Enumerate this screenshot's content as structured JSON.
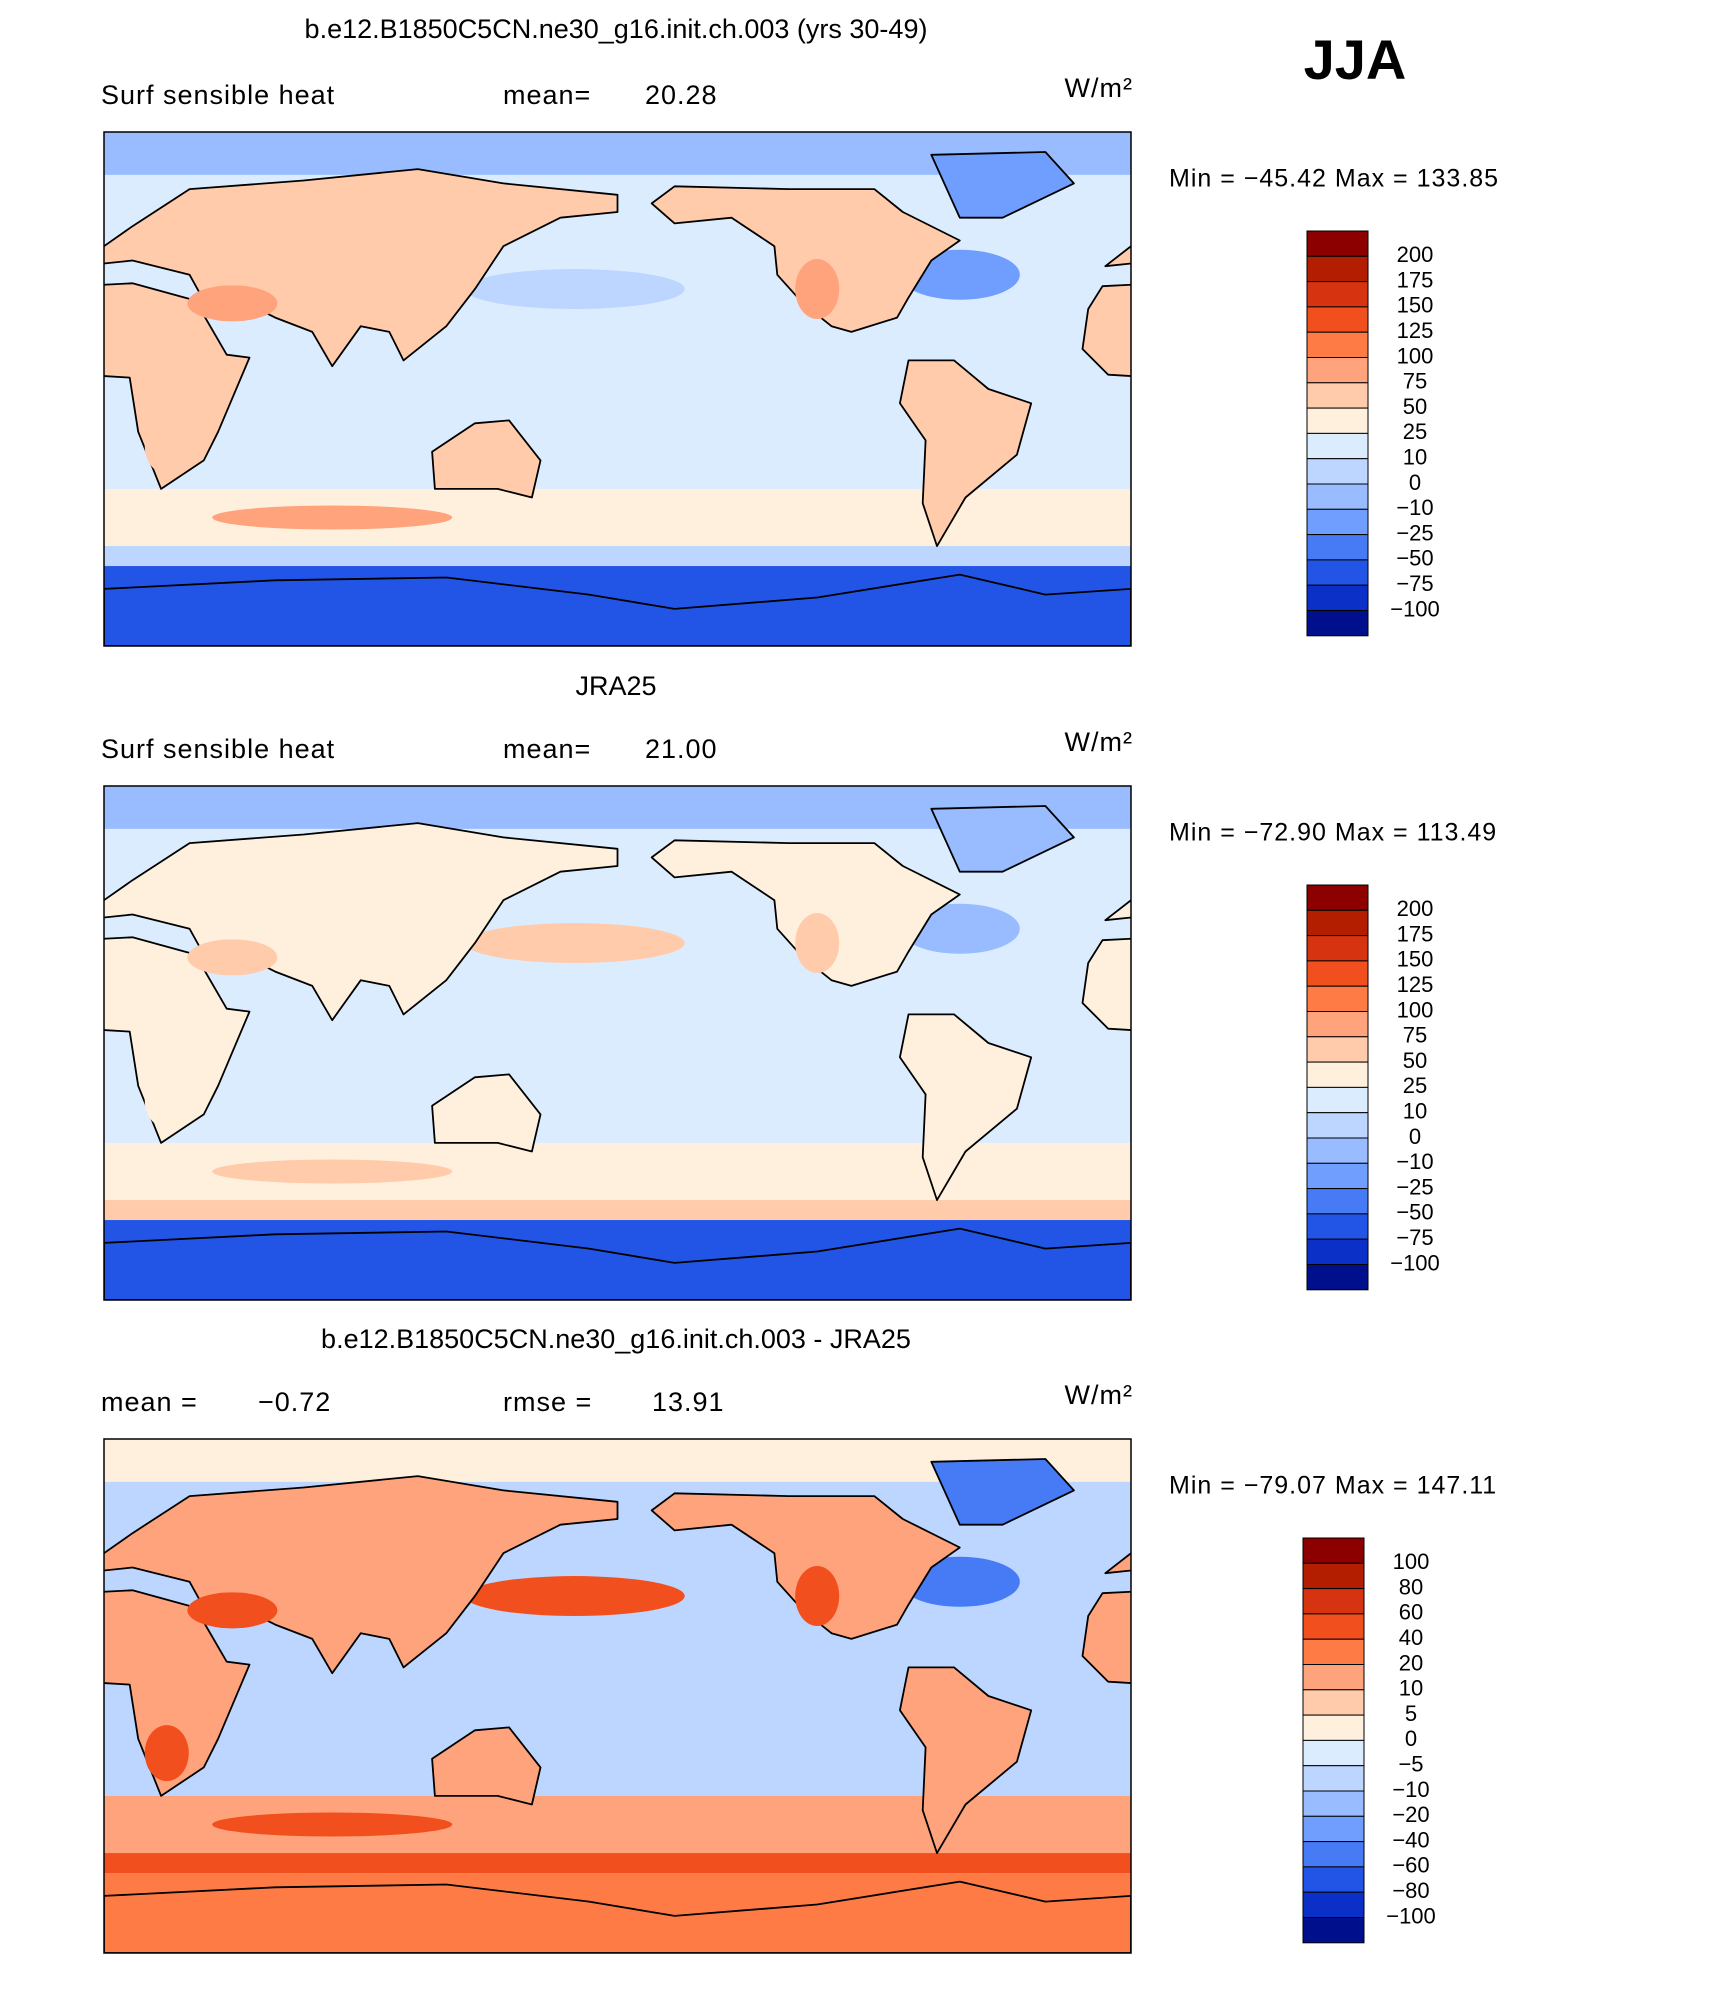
{
  "label": "JJA",
  "panels": [
    {
      "title": "b.e12.B1850C5CN.ne30_g16.init.ch.003 (yrs 30-49)",
      "left": "Surf sensible heat",
      "center": "mean=",
      "center_value": "20.28",
      "units": "W/m²",
      "min_max": "Min = −45.42 Max = 133.85",
      "colorbar": {
        "labels": [
          "200",
          "175",
          "150",
          "125",
          "100",
          "75",
          "50",
          "25",
          "10",
          "0",
          "−10",
          "−25",
          "−50",
          "−75",
          "−100"
        ],
        "colors": [
          "#8c0000",
          "#b31e00",
          "#d63410",
          "#f24f1e",
          "#ff7b45",
          "#ffa37d",
          "#ffcbab",
          "#fff0de",
          "#dcecff",
          "#bcd6ff",
          "#98bcff",
          "#709eff",
          "#477af5",
          "#2255e6",
          "#0a30c8",
          "#00108c"
        ]
      }
    },
    {
      "title": "JRA25",
      "left": "Surf sensible heat",
      "center": "mean=",
      "center_value": "21.00",
      "units": "W/m²",
      "min_max": "Min = −72.90 Max = 113.49",
      "colorbar": {
        "labels": [
          "200",
          "175",
          "150",
          "125",
          "100",
          "75",
          "50",
          "25",
          "10",
          "0",
          "−10",
          "−25",
          "−50",
          "−75",
          "−100"
        ],
        "colors": [
          "#8c0000",
          "#b31e00",
          "#d63410",
          "#f24f1e",
          "#ff7b45",
          "#ffa37d",
          "#ffcbab",
          "#fff0de",
          "#dcecff",
          "#bcd6ff",
          "#98bcff",
          "#709eff",
          "#477af5",
          "#2255e6",
          "#0a30c8",
          "#00108c"
        ]
      }
    },
    {
      "title": "b.e12.B1850C5CN.ne30_g16.init.ch.003 - JRA25",
      "left": "mean =",
      "left_value": "−0.72",
      "center": "rmse =",
      "center_value": "13.91",
      "units": "W/m²",
      "min_max": "Min = −79.07 Max = 147.11",
      "colorbar": {
        "labels": [
          "100",
          "80",
          "60",
          "40",
          "20",
          "10",
          "5",
          "0",
          "−5",
          "−10",
          "−20",
          "−40",
          "−60",
          "−80",
          "−100"
        ],
        "colors": [
          "#8c0000",
          "#b31e00",
          "#d63410",
          "#f24f1e",
          "#ff7b45",
          "#ffa37d",
          "#ffcbab",
          "#fff0de",
          "#dcecff",
          "#bcd6ff",
          "#98bcff",
          "#709eff",
          "#477af5",
          "#2255e6",
          "#0a30c8",
          "#00108c"
        ]
      }
    }
  ]
}
